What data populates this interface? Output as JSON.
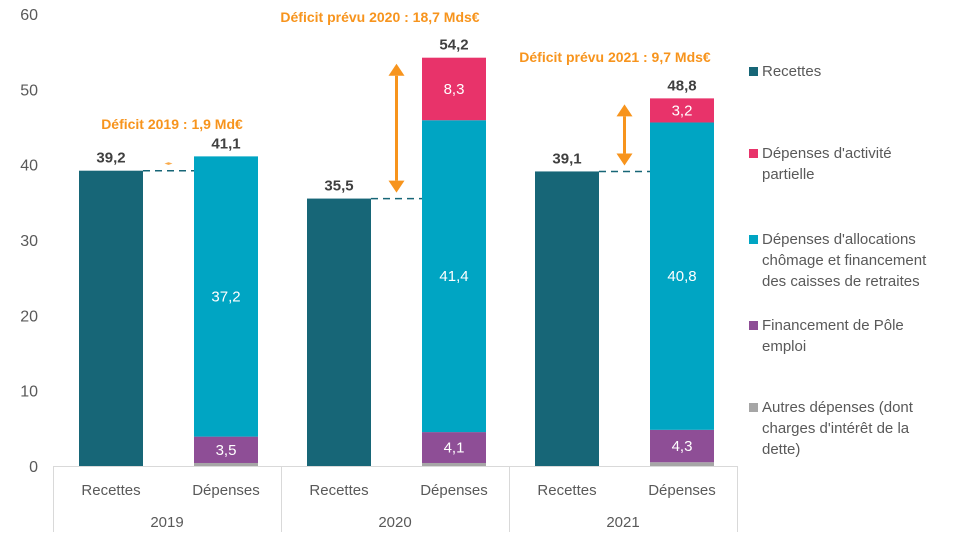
{
  "chart_data": {
    "type": "bar",
    "stacked": true,
    "title": "",
    "xlabel": "",
    "ylabel": "",
    "ylim": [
      0,
      60
    ],
    "yticks": [
      0,
      10,
      20,
      30,
      40,
      50,
      60
    ],
    "grid": false,
    "legend_position": "right",
    "groups": [
      {
        "year": "2019",
        "bars": [
          {
            "category": "Recettes",
            "total_label": "39,2",
            "segments": [
              {
                "series": "Recettes",
                "value": 39.2,
                "label": ""
              }
            ]
          },
          {
            "category": "Dépenses",
            "total_label": "41,1",
            "segments": [
              {
                "series": "Autres dépenses (dont charges d'intérêt de la dette)",
                "value": 0.4,
                "label": ""
              },
              {
                "series": "Financement de Pôle emploi",
                "value": 3.5,
                "label": "3,5"
              },
              {
                "series": "Dépenses d'allocations chômage et financement des caisses de retraites",
                "value": 37.2,
                "label": "37,2"
              }
            ]
          }
        ],
        "deficit": {
          "label": "Déficit 2019 : 1,9 Md€",
          "from": 39.2,
          "to": 41.1
        }
      },
      {
        "year": "2020",
        "bars": [
          {
            "category": "Recettes",
            "total_label": "35,5",
            "segments": [
              {
                "series": "Recettes",
                "value": 35.5,
                "label": ""
              }
            ]
          },
          {
            "category": "Dépenses",
            "total_label": "54,2",
            "segments": [
              {
                "series": "Autres dépenses (dont charges d'intérêt de la dette)",
                "value": 0.4,
                "label": ""
              },
              {
                "series": "Financement de Pôle emploi",
                "value": 4.1,
                "label": "4,1"
              },
              {
                "series": "Dépenses d'allocations chômage et financement des caisses de retraites",
                "value": 41.4,
                "label": "41,4"
              },
              {
                "series": "Dépenses d'activité partielle",
                "value": 8.3,
                "label": "8,3"
              }
            ]
          }
        ],
        "deficit": {
          "label": "Déficit prévu 2020  : 18,7 Mds€",
          "from": 35.5,
          "to": 54.2
        }
      },
      {
        "year": "2021",
        "bars": [
          {
            "category": "Recettes",
            "total_label": "39,1",
            "segments": [
              {
                "series": "Recettes",
                "value": 39.1,
                "label": ""
              }
            ]
          },
          {
            "category": "Dépenses",
            "total_label": "48,8",
            "segments": [
              {
                "series": "Autres dépenses (dont charges d'intérêt de la dette)",
                "value": 0.5,
                "label": ""
              },
              {
                "series": "Financement de Pôle emploi",
                "value": 4.3,
                "label": "4,3"
              },
              {
                "series": "Dépenses d'allocations chômage et financement des caisses de retraites",
                "value": 40.8,
                "label": "40,8"
              },
              {
                "series": "Dépenses d'activité partielle",
                "value": 3.2,
                "label": "3,2"
              }
            ]
          }
        ],
        "deficit": {
          "label": "Déficit prévu 2021 : 9,7 Mds€",
          "from": 39.1,
          "to": 48.8
        }
      }
    ],
    "legend": [
      {
        "name": "Recettes",
        "lines": [
          "Recettes"
        ],
        "color": "#176677"
      },
      {
        "name": "Dépenses d'activité partielle",
        "lines": [
          "Dépenses d'activité",
          "partielle"
        ],
        "color": "#E8336A"
      },
      {
        "name": "Dépenses d'allocations chômage et financement des caisses de retraites",
        "lines": [
          "Dépenses d'allocations",
          "chômage et financement",
          "des caisses de retraites"
        ],
        "color": "#00A5C3"
      },
      {
        "name": "Financement de Pôle emploi",
        "lines": [
          "Financement de Pôle",
          "emploi"
        ],
        "color": "#8E4E96"
      },
      {
        "name": "Autres dépenses (dont charges d'intérêt de la dette)",
        "lines": [
          "Autres dépenses (dont",
          "charges d'intérêt de la",
          "dette)"
        ],
        "color": "#A6A6A6"
      }
    ],
    "colors": {
      "deficit_arrow": "#F7941D",
      "connector": "#176677"
    }
  }
}
